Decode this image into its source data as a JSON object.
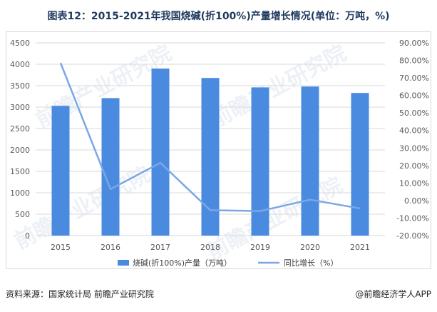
{
  "title": "图表12：2015-2021年我国烧碱(折100%)产量增长情况(单位：万吨，%)",
  "footer": {
    "source": "资料来源：国家统计局 前瞻产业研究院",
    "brand": "@前瞻经济学人APP"
  },
  "watermark": {
    "text": "前瞻产业研究院"
  },
  "colors": {
    "bar": "#4a8be0",
    "line": "#7aa7e6",
    "grid": "#d9d9d9",
    "title": "#1f3a5f"
  },
  "chart_data": {
    "type": "bar",
    "categories": [
      "2015",
      "2016",
      "2017",
      "2018",
      "2019",
      "2020",
      "2021"
    ],
    "series": [
      {
        "name": "烧碱(折100%)产量（万吨）",
        "type": "bar",
        "axis": "left",
        "values": [
          3030,
          3210,
          3900,
          3680,
          3460,
          3480,
          3330
        ]
      },
      {
        "name": "同比增长（%）",
        "type": "line",
        "axis": "right",
        "values": [
          78.5,
          6.5,
          21.5,
          -5.5,
          -6.0,
          0.5,
          -4.5
        ]
      }
    ],
    "y_left": {
      "min": 0,
      "max": 4500,
      "step": 500,
      "ticks": [
        "0",
        "500",
        "1000",
        "1500",
        "2000",
        "2500",
        "3000",
        "3500",
        "4000",
        "4500"
      ]
    },
    "y_right": {
      "min": -20,
      "max": 90,
      "step": 10,
      "ticks": [
        "-20.00%",
        "-10.00%",
        "0.00%",
        "10.00%",
        "20.00%",
        "30.00%",
        "40.00%",
        "50.00%",
        "60.00%",
        "70.00%",
        "80.00%",
        "90.00%"
      ]
    },
    "grid": true,
    "legend_position": "bottom"
  }
}
